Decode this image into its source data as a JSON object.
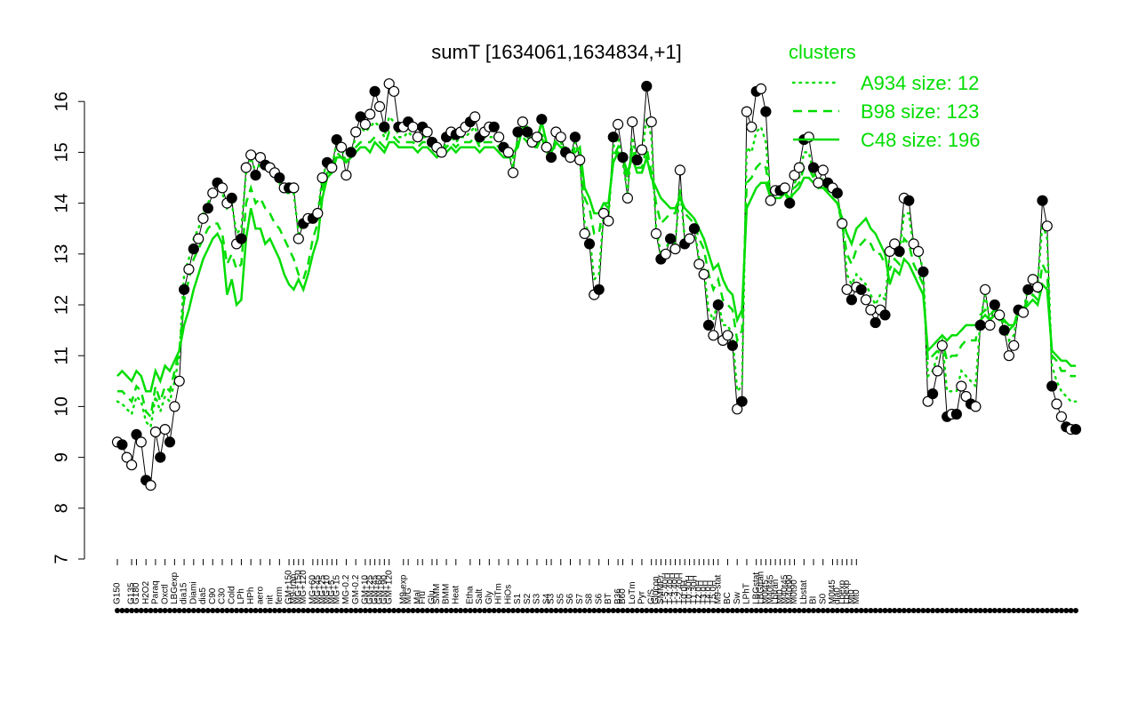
{
  "chart_data": {
    "type": "line",
    "title": "sumT [1634061,1634834,+1]",
    "xlabel": "",
    "ylabel": "",
    "ylim": [
      7,
      16.5
    ],
    "yticks": [
      7,
      8,
      9,
      10,
      11,
      12,
      13,
      14,
      15,
      16
    ],
    "grid": false,
    "legend": {
      "title": "clusters",
      "placement": "top-right",
      "entries": [
        {
          "label": "A934 size: 12",
          "style": "dotted"
        },
        {
          "label": "B98 size: 123",
          "style": "dashed"
        },
        {
          "label": "C48 size: 196",
          "style": "solid"
        }
      ]
    },
    "colors": {
      "clusters": "#00dd00",
      "points": "#000000"
    },
    "x_labels": [
      {
        "label": "G150",
        "i": 0
      },
      {
        "label": "G135",
        "i": 3
      },
      {
        "label": "G180",
        "i": 4
      },
      {
        "label": "H2O2",
        "i": 6
      },
      {
        "label": "Paraq",
        "i": 8
      },
      {
        "label": "Oxctl",
        "i": 10
      },
      {
        "label": "LBGexp",
        "i": 12
      },
      {
        "label": "dia15",
        "i": 14
      },
      {
        "label": "Diami",
        "i": 16
      },
      {
        "label": "dia5",
        "i": 18
      },
      {
        "label": "C90",
        "i": 20
      },
      {
        "label": "C30",
        "i": 22
      },
      {
        "label": "Cold",
        "i": 24
      },
      {
        "label": "LPh",
        "i": 26
      },
      {
        "label": "HPh",
        "i": 28
      },
      {
        "label": "aero",
        "i": 30
      },
      {
        "label": "nit",
        "i": 32
      },
      {
        "label": "ferm",
        "i": 34
      },
      {
        "label": "GM+150",
        "i": 36
      },
      {
        "label": "M9-tran",
        "i": 37
      },
      {
        "label": "MG+150",
        "i": 38
      },
      {
        "label": "MG+120",
        "i": 39
      },
      {
        "label": "MG+60",
        "i": 41
      },
      {
        "label": "MG+45",
        "i": 42
      },
      {
        "label": "MG+25",
        "i": 43
      },
      {
        "label": "MG+10",
        "i": 44
      },
      {
        "label": "MG+5",
        "i": 45
      },
      {
        "label": "MG+15",
        "i": 46
      },
      {
        "label": "MG-0.2",
        "i": 48
      },
      {
        "label": "GM-0.2",
        "i": 50
      },
      {
        "label": "GM+10",
        "i": 52
      },
      {
        "label": "GM+25",
        "i": 53
      },
      {
        "label": "GM+45",
        "i": 54
      },
      {
        "label": "GM+60",
        "i": 55
      },
      {
        "label": "GM+90",
        "i": 56
      },
      {
        "label": "GM+120",
        "i": 57
      },
      {
        "label": "M9-exp",
        "i": 60
      },
      {
        "label": "M/G",
        "i": 61
      },
      {
        "label": "Mal",
        "i": 63
      },
      {
        "label": "Fru",
        "i": 64
      },
      {
        "label": "Glu",
        "i": 66
      },
      {
        "label": "SMM",
        "i": 67
      },
      {
        "label": "BMM",
        "i": 69
      },
      {
        "label": "Heat",
        "i": 71
      },
      {
        "label": "Etha",
        "i": 74
      },
      {
        "label": "Salt",
        "i": 76
      },
      {
        "label": "Gly",
        "i": 78
      },
      {
        "label": "HiTm",
        "i": 80
      },
      {
        "label": "HiOs",
        "i": 82
      },
      {
        "label": "S1",
        "i": 84
      },
      {
        "label": "S2",
        "i": 86
      },
      {
        "label": "S3",
        "i": 88
      },
      {
        "label": "S4",
        "i": 90
      },
      {
        "label": "S3",
        "i": 91
      },
      {
        "label": "S5",
        "i": 93
      },
      {
        "label": "S6",
        "i": 95
      },
      {
        "label": "S7",
        "i": 97
      },
      {
        "label": "S8",
        "i": 99
      },
      {
        "label": "S6",
        "i": 101
      },
      {
        "label": "BT",
        "i": 103
      },
      {
        "label": "B36",
        "i": 105
      },
      {
        "label": "B60",
        "i": 106
      },
      {
        "label": "LoTm",
        "i": 108
      },
      {
        "label": "Pyr",
        "i": 110
      },
      {
        "label": "G/S",
        "i": 112
      },
      {
        "label": "Glucon",
        "i": 113
      },
      {
        "label": "SMMPr",
        "i": 114
      },
      {
        "label": "T-5.40H",
        "i": 115
      },
      {
        "label": "T-4.40H",
        "i": 116
      },
      {
        "label": "T-3.40H",
        "i": 117
      },
      {
        "label": "T-2.40H",
        "i": 118
      },
      {
        "label": "T0.0H",
        "i": 119
      },
      {
        "label": "T0.30H",
        "i": 120
      },
      {
        "label": "T1.30H",
        "i": 121
      },
      {
        "label": "T2.0H",
        "i": 122
      },
      {
        "label": "T3.0H",
        "i": 123
      },
      {
        "label": "T4.0H",
        "i": 124
      },
      {
        "label": "T5.0H",
        "i": 125
      },
      {
        "label": "M9-stat",
        "i": 126
      },
      {
        "label": "BC",
        "i": 128
      },
      {
        "label": "Sw",
        "i": 130
      },
      {
        "label": "LPhT",
        "i": 132
      },
      {
        "label": "LBGstat",
        "i": 134
      },
      {
        "label": "LBGtran",
        "i": 135
      },
      {
        "label": "M0t45",
        "i": 136
      },
      {
        "label": "M40t45",
        "i": 137
      },
      {
        "label": "Lbtran",
        "i": 138
      },
      {
        "label": "Mt0",
        "i": 139
      },
      {
        "label": "M40t45",
        "i": 140
      },
      {
        "label": "M40t90",
        "i": 141
      },
      {
        "label": "M0t90",
        "i": 142
      },
      {
        "label": "Lbstat",
        "i": 144
      },
      {
        "label": "BI",
        "i": 146
      },
      {
        "label": "S0",
        "i": 148
      },
      {
        "label": "M0t45",
        "i": 150
      },
      {
        "label": "dia0",
        "i": 151
      },
      {
        "label": "Lbexp",
        "i": 152
      },
      {
        "label": "Lbexp",
        "i": 153
      },
      {
        "label": "Mt0",
        "i": 154
      },
      {
        "label": "Mt0",
        "i": 155
      }
    ],
    "series": [
      {
        "name": "",
        "style": "points",
        "values": [
          9.3,
          9.25,
          9.0,
          8.85,
          9.45,
          9.3,
          8.55,
          8.45,
          9.5,
          9.0,
          9.55,
          9.3,
          10.0,
          10.5,
          12.3,
          12.7,
          13.1,
          13.3,
          13.7,
          13.9,
          14.2,
          14.4,
          14.3,
          14.0,
          14.1,
          13.2,
          13.3,
          14.7,
          14.95,
          14.55,
          14.9,
          14.75,
          14.7,
          14.6,
          14.5,
          14.3,
          14.3,
          14.3,
          13.3,
          13.6,
          13.7,
          13.7,
          13.8,
          14.5,
          14.8,
          14.7,
          15.25,
          15.1,
          14.55,
          15.0,
          15.4,
          15.7,
          15.55,
          15.75,
          16.2,
          15.9,
          15.5,
          16.35,
          16.2,
          15.5,
          15.5,
          15.6,
          15.5,
          15.3,
          15.5,
          15.4,
          15.2,
          15.1,
          15.0,
          15.3,
          15.4,
          15.35,
          15.4,
          15.5,
          15.6,
          15.7,
          15.3,
          15.4,
          15.5,
          15.5,
          15.3,
          15.1,
          15.0,
          14.6,
          15.4,
          15.6,
          15.4,
          15.2,
          15.3,
          15.65,
          15.1,
          14.9,
          15.4,
          15.3,
          15.0,
          14.9,
          15.3,
          14.85,
          13.4,
          13.2,
          12.2,
          12.3,
          13.8,
          13.65,
          15.3,
          15.55,
          14.9,
          14.1,
          15.6,
          14.85,
          15.05,
          16.3,
          15.6,
          13.4,
          12.9,
          13.0,
          13.3,
          13.1,
          14.65,
          13.2,
          13.3,
          13.5,
          12.8,
          12.6,
          11.6,
          11.4,
          12.0,
          11.3,
          11.4,
          11.2,
          9.95,
          10.1,
          15.8,
          15.5,
          16.2,
          16.25,
          15.8,
          14.05,
          14.25,
          14.25,
          14.3,
          14.0,
          14.55,
          14.7,
          15.25,
          15.3,
          14.7,
          14.4,
          14.65,
          14.4,
          14.3,
          14.2,
          13.6,
          12.3,
          12.1,
          12.35,
          12.3,
          12.1,
          11.9,
          11.65,
          11.9,
          11.8,
          13.05,
          13.2,
          13.05,
          14.1,
          14.05,
          13.2,
          13.05,
          12.65,
          10.1,
          10.25,
          10.7,
          11.2,
          9.8,
          9.85,
          9.85,
          10.4,
          10.2,
          10.05,
          10.0,
          11.6,
          12.3,
          11.6,
          12.0,
          11.8,
          11.5,
          11.0,
          11.2,
          11.9,
          11.85,
          12.3,
          12.5,
          12.35,
          14.05,
          13.55,
          10.4,
          10.05,
          9.8,
          9.6,
          9.55,
          9.55
        ]
      },
      {
        "name": "",
        "style": "dotted",
        "values": [
          10.1,
          10.05,
          9.95,
          9.85,
          10.2,
          10.1,
          9.7,
          9.6,
          10.2,
          9.9,
          10.2,
          10.1,
          10.5,
          11.0,
          12.6,
          12.9,
          13.3,
          13.5,
          13.8,
          14.0,
          14.2,
          14.3,
          14.2,
          13.9,
          14.0,
          13.4,
          13.5,
          14.6,
          14.9,
          14.6,
          14.8,
          14.7,
          14.6,
          14.5,
          14.4,
          14.2,
          14.2,
          14.2,
          13.4,
          13.6,
          13.7,
          13.7,
          13.8,
          14.5,
          14.8,
          14.7,
          15.2,
          15.1,
          14.8,
          15.0,
          15.3,
          15.5,
          15.4,
          15.5,
          15.6,
          15.5,
          15.3,
          15.7,
          15.6,
          15.3,
          15.3,
          15.4,
          15.3,
          15.2,
          15.3,
          15.3,
          15.1,
          15.0,
          15.0,
          15.2,
          15.3,
          15.2,
          15.3,
          15.3,
          15.4,
          15.5,
          15.2,
          15.3,
          15.3,
          15.3,
          15.2,
          15.0,
          15.0,
          14.7,
          15.3,
          15.4,
          15.3,
          15.1,
          15.2,
          15.4,
          15.0,
          14.9,
          15.3,
          15.2,
          15.0,
          14.9,
          15.2,
          14.9,
          13.6,
          13.4,
          12.5,
          12.6,
          13.8,
          13.7,
          15.1,
          15.3,
          14.8,
          14.2,
          15.3,
          14.8,
          14.9,
          15.7,
          15.3,
          13.5,
          13.0,
          13.1,
          13.3,
          13.2,
          14.3,
          13.3,
          13.3,
          13.5,
          12.9,
          12.7,
          11.9,
          11.7,
          12.1,
          11.6,
          11.6,
          11.4,
          10.3,
          10.4,
          15.1,
          15.0,
          15.4,
          15.5,
          15.2,
          14.1,
          14.2,
          14.2,
          14.3,
          14.0,
          14.4,
          14.5,
          15.0,
          15.0,
          14.6,
          14.4,
          14.5,
          14.3,
          14.2,
          14.1,
          13.7,
          12.6,
          12.4,
          12.6,
          12.5,
          12.4,
          12.2,
          12.0,
          12.2,
          12.1,
          13.0,
          13.1,
          13.0,
          13.8,
          13.8,
          13.1,
          13.0,
          12.7,
          10.6,
          10.7,
          11.0,
          11.3,
          10.3,
          10.3,
          10.3,
          10.7,
          10.6,
          10.5,
          10.4,
          11.7,
          12.2,
          11.7,
          12.0,
          11.8,
          11.6,
          11.3,
          11.4,
          11.9,
          11.9,
          12.3,
          12.5,
          12.4,
          13.6,
          13.3,
          10.8,
          10.5,
          10.3,
          10.2,
          10.1,
          10.1
        ]
      },
      {
        "name": "",
        "style": "dashed",
        "values": [
          10.3,
          10.3,
          10.2,
          10.1,
          10.4,
          10.3,
          9.9,
          9.8,
          10.4,
          10.1,
          10.4,
          10.3,
          10.7,
          11.1,
          12.1,
          12.5,
          12.9,
          13.1,
          13.3,
          13.5,
          13.6,
          13.6,
          13.4,
          12.8,
          13.0,
          12.7,
          12.8,
          14.0,
          14.3,
          14.0,
          14.1,
          13.9,
          13.8,
          13.6,
          13.5,
          13.3,
          13.1,
          12.9,
          12.6,
          12.5,
          12.8,
          13.3,
          13.6,
          14.3,
          14.6,
          14.6,
          15.0,
          14.9,
          14.8,
          14.9,
          15.1,
          15.2,
          15.2,
          15.2,
          15.3,
          15.2,
          15.1,
          15.4,
          15.3,
          15.2,
          15.2,
          15.2,
          15.2,
          15.1,
          15.2,
          15.2,
          15.1,
          15.0,
          15.0,
          15.1,
          15.2,
          15.1,
          15.2,
          15.2,
          15.2,
          15.3,
          15.1,
          15.2,
          15.2,
          15.2,
          15.1,
          15.0,
          15.0,
          14.9,
          15.2,
          15.3,
          15.2,
          15.1,
          15.1,
          15.3,
          15.0,
          14.9,
          15.2,
          15.1,
          15.0,
          14.9,
          15.1,
          15.0,
          14.1,
          13.9,
          13.4,
          13.4,
          14.0,
          13.9,
          14.9,
          15.1,
          14.8,
          14.5,
          15.1,
          14.7,
          14.7,
          15.1,
          14.6,
          14.0,
          13.6,
          13.7,
          13.8,
          13.8,
          14.2,
          13.8,
          13.7,
          13.6,
          13.3,
          13.1,
          12.6,
          12.3,
          12.5,
          12.1,
          12.0,
          11.9,
          11.3,
          11.5,
          14.4,
          14.5,
          14.7,
          14.8,
          14.7,
          14.1,
          14.1,
          14.1,
          14.2,
          14.0,
          14.3,
          14.4,
          14.7,
          14.7,
          14.5,
          14.3,
          14.4,
          14.2,
          14.1,
          14.0,
          13.6,
          13.0,
          12.8,
          13.1,
          13.2,
          13.3,
          13.2,
          13.0,
          13.0,
          12.8,
          12.7,
          12.9,
          12.8,
          13.3,
          13.2,
          12.8,
          12.6,
          12.4,
          10.9,
          11.0,
          11.1,
          11.3,
          10.9,
          11.0,
          11.0,
          11.2,
          11.3,
          11.3,
          11.3,
          11.8,
          11.9,
          11.8,
          11.9,
          11.8,
          11.7,
          11.5,
          11.6,
          11.9,
          11.9,
          12.1,
          12.2,
          12.1,
          12.8,
          12.6,
          11.0,
          10.9,
          10.7,
          10.7,
          10.6,
          10.6
        ]
      },
      {
        "name": "",
        "style": "solid",
        "values": [
          10.6,
          10.7,
          10.6,
          10.5,
          10.7,
          10.6,
          10.3,
          10.3,
          10.7,
          10.5,
          10.8,
          10.7,
          10.9,
          11.1,
          11.6,
          11.9,
          12.3,
          12.6,
          12.9,
          13.1,
          13.3,
          13.4,
          13.2,
          12.2,
          12.5,
          12.0,
          12.1,
          13.3,
          13.9,
          13.5,
          13.5,
          13.2,
          13.3,
          13.1,
          12.9,
          12.6,
          12.4,
          12.3,
          12.5,
          12.3,
          12.6,
          13.0,
          13.3,
          14.1,
          14.5,
          14.6,
          14.9,
          14.9,
          14.8,
          14.9,
          15.0,
          15.1,
          15.1,
          15.0,
          15.2,
          15.1,
          15.0,
          15.2,
          15.2,
          15.1,
          15.1,
          15.1,
          15.1,
          15.0,
          15.1,
          15.1,
          15.0,
          14.9,
          15.0,
          15.0,
          15.1,
          15.0,
          15.1,
          15.1,
          15.1,
          15.1,
          15.0,
          15.1,
          15.1,
          15.1,
          15.0,
          14.9,
          14.9,
          15.0,
          15.1,
          15.5,
          15.5,
          15.2,
          15.2,
          15.6,
          15.2,
          15.0,
          15.2,
          15.1,
          15.1,
          15.0,
          15.0,
          15.1,
          14.3,
          14.1,
          13.8,
          13.8,
          14.0,
          14.0,
          14.8,
          15.0,
          14.9,
          14.6,
          14.9,
          14.6,
          14.6,
          14.9,
          14.5,
          14.3,
          14.1,
          14.0,
          13.9,
          13.9,
          14.1,
          13.9,
          13.8,
          13.7,
          13.5,
          13.3,
          13.0,
          12.7,
          12.8,
          12.5,
          12.3,
          12.2,
          11.7,
          11.9,
          13.9,
          14.1,
          14.3,
          14.4,
          14.4,
          14.1,
          14.1,
          14.1,
          14.2,
          14.1,
          14.2,
          14.3,
          14.5,
          14.5,
          14.4,
          14.3,
          14.3,
          14.2,
          14.1,
          14.0,
          13.7,
          13.4,
          13.2,
          13.5,
          13.6,
          13.7,
          13.5,
          13.4,
          13.2,
          13.0,
          12.4,
          12.7,
          12.6,
          12.9,
          12.8,
          12.6,
          12.4,
          12.2,
          11.1,
          11.2,
          11.3,
          11.4,
          11.3,
          11.4,
          11.4,
          11.5,
          11.6,
          11.6,
          11.6,
          11.7,
          11.8,
          11.7,
          11.8,
          11.7,
          11.7,
          11.6,
          11.6,
          11.9,
          11.9,
          12.0,
          12.1,
          12.0,
          12.4,
          12.3,
          11.1,
          11.0,
          10.9,
          10.9,
          10.8,
          10.8
        ]
      }
    ]
  }
}
